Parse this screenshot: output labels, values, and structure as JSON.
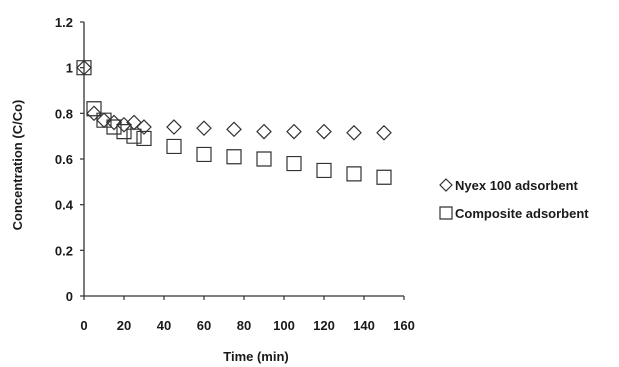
{
  "chart_data": {
    "type": "scatter",
    "xlabel": "Time (min)",
    "ylabel": "Concentration (C/Co)",
    "xlim": [
      0,
      160
    ],
    "ylim": [
      0,
      1.2
    ],
    "x_ticks": [
      0,
      20,
      40,
      60,
      80,
      100,
      120,
      140,
      160
    ],
    "y_ticks": [
      0,
      0.2,
      0.4,
      0.6,
      0.8,
      1,
      1.2
    ],
    "y_tick_labels": [
      "0",
      "0.2",
      "0.4",
      "0.6",
      "0.8",
      "1",
      "1.2"
    ],
    "grid": false,
    "legend_position": "right",
    "series": [
      {
        "name": "Nyex 100 adsorbent",
        "marker": "diamond",
        "color": "#333333",
        "x": [
          0,
          5,
          10,
          15,
          20,
          25,
          30,
          45,
          60,
          75,
          90,
          105,
          120,
          135,
          150
        ],
        "y": [
          1.0,
          0.8,
          0.77,
          0.76,
          0.75,
          0.76,
          0.74,
          0.74,
          0.735,
          0.73,
          0.72,
          0.72,
          0.72,
          0.715,
          0.715
        ]
      },
      {
        "name": "Composite adsorbent",
        "marker": "square",
        "color": "#333333",
        "x": [
          0,
          5,
          10,
          15,
          20,
          25,
          30,
          45,
          60,
          75,
          90,
          105,
          120,
          135,
          150
        ],
        "y": [
          1.0,
          0.82,
          0.77,
          0.74,
          0.72,
          0.7,
          0.69,
          0.655,
          0.62,
          0.61,
          0.6,
          0.58,
          0.55,
          0.535,
          0.52
        ]
      }
    ]
  }
}
